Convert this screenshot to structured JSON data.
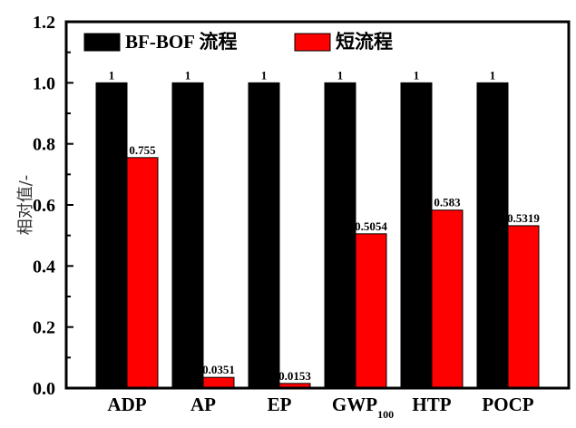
{
  "chart_data": {
    "type": "bar",
    "title": "",
    "xlabel": "",
    "ylabel": "相对值/-",
    "ylim": [
      0,
      1.2
    ],
    "yticks": [
      "0.0",
      "0.2",
      "0.4",
      "0.6",
      "0.8",
      "1.0",
      "1.2"
    ],
    "grid": false,
    "legend_position": "top-inside",
    "categories": [
      "ADP",
      "AP",
      "EP",
      "GWP100",
      "HTP",
      "POCP"
    ],
    "category_display": [
      {
        "main": "ADP",
        "sub": ""
      },
      {
        "main": "AP",
        "sub": ""
      },
      {
        "main": "EP",
        "sub": ""
      },
      {
        "main": "GWP",
        "sub": "100"
      },
      {
        "main": "HTP",
        "sub": ""
      },
      {
        "main": "POCP",
        "sub": ""
      }
    ],
    "series": [
      {
        "name": "BF-BOF 流程",
        "color": "#000000",
        "values": [
          1,
          1,
          1,
          1,
          1,
          1
        ],
        "labels": [
          "1",
          "1",
          "1",
          "1",
          "1",
          "1"
        ]
      },
      {
        "name": "短流程",
        "color": "#ff0000",
        "values": [
          0.755,
          0.0351,
          0.0153,
          0.5054,
          0.583,
          0.5319
        ],
        "labels": [
          "0.755",
          "0.0351",
          "0.0153",
          "0.5054",
          "0.583",
          "0.5319"
        ]
      }
    ]
  }
}
